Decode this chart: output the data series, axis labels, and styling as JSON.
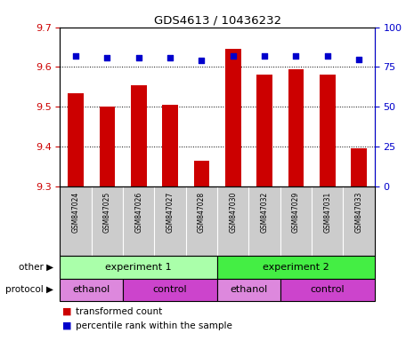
{
  "title": "GDS4613 / 10436232",
  "samples": [
    "GSM847024",
    "GSM847025",
    "GSM847026",
    "GSM847027",
    "GSM847028",
    "GSM847030",
    "GSM847032",
    "GSM847029",
    "GSM847031",
    "GSM847033"
  ],
  "bar_values": [
    9.535,
    9.5,
    9.555,
    9.505,
    9.365,
    9.645,
    9.58,
    9.595,
    9.58,
    9.395
  ],
  "bar_base": 9.3,
  "percentile_values": [
    82,
    81,
    81,
    81,
    79,
    82,
    82,
    82,
    82,
    80
  ],
  "bar_color": "#cc0000",
  "dot_color": "#0000cc",
  "ylim_left": [
    9.3,
    9.7
  ],
  "ylim_right": [
    0,
    100
  ],
  "yticks_left": [
    9.3,
    9.4,
    9.5,
    9.6,
    9.7
  ],
  "yticks_right": [
    0,
    25,
    50,
    75,
    100
  ],
  "grid_values": [
    9.4,
    9.5,
    9.6
  ],
  "experiment1_label": "experiment 1",
  "experiment2_label": "experiment 2",
  "experiment1_color": "#aaffaa",
  "experiment2_color": "#44ee44",
  "ethanol_color": "#ee88ee",
  "control_color": "#cc44cc",
  "other_label": "other",
  "protocol_label": "protocol",
  "legend_bar_label": "transformed count",
  "legend_dot_label": "percentile rank within the sample",
  "tick_color_left": "#cc0000",
  "tick_color_right": "#0000cc",
  "bg_color": "#ffffff",
  "plot_bg_color": "#ffffff",
  "sample_bg_color": "#cccccc",
  "proto_ethanol_color": "#dd88dd",
  "proto_control_color": "#cc44cc"
}
